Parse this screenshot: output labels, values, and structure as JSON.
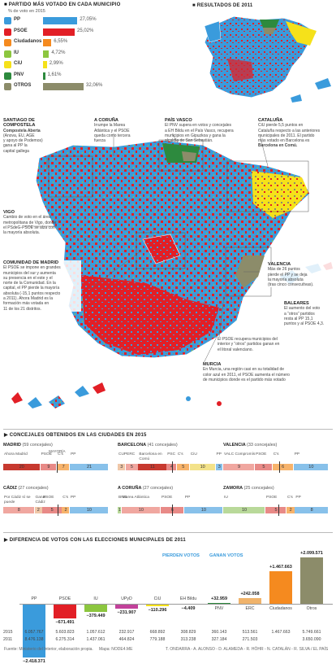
{
  "legend": {
    "title": "PARTIDO MÁS VOTADO EN CADA MUNICIPIO",
    "subtitle": "% de voto en 2015",
    "parties": [
      {
        "name": "PP",
        "pct": "27,05%",
        "value": 27.05,
        "color": "#3a9bdc",
        "logo": "pp-logo-icon"
      },
      {
        "name": "PSOE",
        "pct": "25,02%",
        "value": 25.02,
        "color": "#e21f26",
        "logo": "psoe-logo-icon"
      },
      {
        "name": "Ciudadanos",
        "pct": "6,55%",
        "value": 6.55,
        "color": "#f58a1f",
        "logo": "ciudadanos-logo-icon"
      },
      {
        "name": "IU",
        "pct": "4,72%",
        "value": 4.72,
        "color": "#8cc63f",
        "logo": "iu-logo-icon"
      },
      {
        "name": "CiU",
        "pct": "2,99%",
        "value": 2.99,
        "color": "#f5e11a",
        "logo": "ciu-logo-icon"
      },
      {
        "name": "PNV",
        "pct": "1,61%",
        "value": 1.61,
        "color": "#2d8a3e",
        "logo": "pnv-logo-icon"
      },
      {
        "name": "OTROS",
        "pct": "32,06%",
        "value": 32.06,
        "color": "#8c8c6a",
        "logo": "otros-swatch-icon"
      }
    ]
  },
  "inset_title": "RESULTADOS DE 2011",
  "notes": {
    "santiago": {
      "title": "SANTIAGO DE COMPOSTELA",
      "lines": [
        "Compostela Aberta",
        "(Anova, EU, AGE",
        "y apoyo de Podemos)",
        "gana al PP la",
        "capital gallega"
      ]
    },
    "coruna": {
      "title": "A CORUÑA",
      "lines": [
        "Irrumpe la Marea",
        "Atlántica y el PSOE",
        "queda como tercera",
        "fuerza"
      ]
    },
    "pais_vasco": {
      "title": "PAÍS VASCO",
      "lines": [
        "El PNV supera en votos y concejales",
        "a EH Bildu en el País Vasco, recupera",
        "municipios en Gipuzkoa y gana la",
        "alcaldía de San Sebastián."
      ]
    },
    "cataluna": {
      "title": "CATALUÑA",
      "lines": [
        "CiU pierde 5,5 puntos en",
        "Cataluña respecto a las anteriores",
        "municipales de 2011. El partido",
        "más votado en Barcelona es",
        "Barcelona en Comú."
      ]
    },
    "vigo": {
      "title": "VIGO",
      "lines": [
        "Cambio de voto en el área",
        "metropolitana de Vigo, donde",
        "el PSdeG-PSOE se alza con",
        "la mayoría absoluta."
      ]
    },
    "madrid": {
      "title": "COMUNIDAD DE MADRID",
      "lines": [
        "El PSOE se impone en grandes",
        "municipios del sur y aumenta",
        "su presencia en el este y el",
        "norte de la Comunidad. En la",
        "capital, el PP pierde la mayoría",
        "absoluta (-15,1 puntos respecto",
        "a 2011). Ahora Madrid es la",
        "formación más votada en",
        "11 de los 21 distritos."
      ]
    },
    "valencia": {
      "title": "VALENCIA",
      "lines": [
        "Más de 26 puntos",
        "pierde el PP y se deja",
        "la mayoría absoluta",
        "(tras cinco consecutivas)."
      ]
    },
    "baleares": {
      "title": "BALEARES",
      "lines": [
        "El aumento del voto",
        "a “otros” partidos",
        "resta al PP 15,1",
        "puntos y al PSOE 4,3."
      ]
    },
    "interior": {
      "title": "",
      "lines": [
        "El PSOE recupera municipios del",
        "interior y “otros” partidos ganan en",
        "el litoral valenciano."
      ]
    },
    "murcia": {
      "title": "MURCIA",
      "lines": [
        "En Murcia, una región casi en su totalidad de",
        "color azul en 2011, el PSOE aumenta el número",
        "de municipios donde es el partido más votado"
      ]
    }
  },
  "councils": {
    "title": "CONCEJALES OBTENIDOS EN LAS CIUDADES EN 2015",
    "mayoria_label": "MAYORÍA",
    "cities": [
      {
        "name": "MADRID",
        "detail": "(59 concejales)",
        "parties": [
          {
            "label": "Ahora Madrid",
            "seats": 20,
            "color": "#c7392f"
          },
          {
            "label": "PSOE",
            "seats": 9,
            "color": "#e88a87"
          },
          {
            "label": "C's",
            "seats": 7,
            "color": "#f7b36b"
          },
          {
            "label": "PP",
            "seats": 21,
            "color": "#88c1ea"
          }
        ]
      },
      {
        "name": "BARCELONA",
        "detail": "(41 concejales)",
        "parties": [
          {
            "label": "CUPERC",
            "seats": 3,
            "color": "#f0c7a8"
          },
          {
            "label": "",
            "seats": 5,
            "color": "#f0a7a0"
          },
          {
            "label": "Barcelona en Comú",
            "seats": 11,
            "color": "#c7392f"
          },
          {
            "label": "PSC",
            "seats": 4,
            "color": "#e88a87"
          },
          {
            "label": "C's",
            "seats": 5,
            "color": "#f7b36b"
          },
          {
            "label": "CiU",
            "seats": 10,
            "color": "#f3e28a"
          },
          {
            "label": "PP",
            "seats": 3,
            "color": "#88c1ea"
          }
        ]
      },
      {
        "name": "VALENCIA",
        "detail": "(33 concejales)",
        "parties": [
          {
            "label": "VALC Compromís",
            "seats": 9,
            "color": "#f0a7a0"
          },
          {
            "label": "PSOE",
            "seats": 5,
            "color": "#e88a87"
          },
          {
            "label": "C's",
            "seats": 6,
            "color": "#f7b36b"
          },
          {
            "label": "PP",
            "seats": 10,
            "color": "#88c1ea"
          }
        ]
      },
      {
        "name": "CÁDIZ",
        "detail": "(27 concejales)",
        "parties": [
          {
            "label": "Por Cádiz sí se puede",
            "seats": 8,
            "color": "#f0a7a0"
          },
          {
            "label": "Ganar Cádiz",
            "seats": 2,
            "color": "#f0c7a8"
          },
          {
            "label": "PSOE",
            "seats": 5,
            "color": "#e88a87"
          },
          {
            "label": "C's",
            "seats": 2,
            "color": "#f7b36b"
          },
          {
            "label": "PP",
            "seats": 10,
            "color": "#88c1ea"
          }
        ]
      },
      {
        "name": "A CORUÑA",
        "detail": "(27 concejales)",
        "parties": [
          {
            "label": "BNG",
            "seats": 1,
            "color": "#b9d99a"
          },
          {
            "label": "Marea Atlántica",
            "seats": 10,
            "color": "#f0a7a0"
          },
          {
            "label": "PSOE",
            "seats": 6,
            "color": "#e88a87"
          },
          {
            "label": "PP",
            "seats": 10,
            "color": "#88c1ea"
          }
        ]
      },
      {
        "name": "ZAMORA",
        "detail": "(25 concejales)",
        "parties": [
          {
            "label": "IU",
            "seats": 10,
            "color": "#b9d99a"
          },
          {
            "label": "PSOE",
            "seats": 5,
            "color": "#e88a87"
          },
          {
            "label": "C's",
            "seats": 2,
            "color": "#f7b36b"
          },
          {
            "label": "PP",
            "seats": 8,
            "color": "#88c1ea"
          }
        ]
      }
    ]
  },
  "chart_data": {
    "type": "bar",
    "title": "DIFERENCIA DE VOTOS CON LAS ELECCIONES MUNICIPALES DE 2011",
    "group_labels": {
      "lose": "PIERDEN VOTOS",
      "gain": "GANAN VOTOS"
    },
    "categories": [
      "PP",
      "PSOE",
      "IU",
      "UPyD",
      "CiU",
      "EH Bildu",
      "PNV",
      "ERC",
      "Ciudadanos",
      "Otros"
    ],
    "diff_labels": [
      "−2.418.371",
      "−671.491",
      "−379.449",
      "−231.907",
      "−110.296",
      "−4.409",
      "+32.959",
      "+242.058",
      "+1.467.663",
      "+2.099.571"
    ],
    "values": [
      -2418371,
      -671491,
      -379449,
      -231907,
      -110296,
      -4409,
      32959,
      242058,
      1467663,
      2099571
    ],
    "colors": [
      "#3a9bdc",
      "#e21f26",
      "#8cc63f",
      "#c2419a",
      "#f5e11a",
      "#8aa334",
      "#2d8a3e",
      "#f0b36b",
      "#f58a1f",
      "#8c8c6a"
    ],
    "years": [
      {
        "year": "2015",
        "values": [
          "6.057.767",
          "5.603.823",
          "1.057.612",
          "232.917",
          "668.892",
          "308.829",
          "360.143",
          "513.561",
          "1.467.663",
          "5.749.661"
        ]
      },
      {
        "year": "2011",
        "values": [
          "8.476.138",
          "6.275.314",
          "1.437.061",
          "464.824",
          "779.188",
          "313.238",
          "327.184",
          "271.503",
          "",
          "3.650.090"
        ]
      }
    ]
  },
  "footer": {
    "source": "Fuente: Ministerio del Interior, elaboración propia.",
    "map_credit": "Mapa: NODE4.ME",
    "authors": "T. ONDARRA - A. ALONSO - D. ALAMEDA - R. HÖHR - N. CATALÁN - R. SILVA / EL PAÍS"
  }
}
